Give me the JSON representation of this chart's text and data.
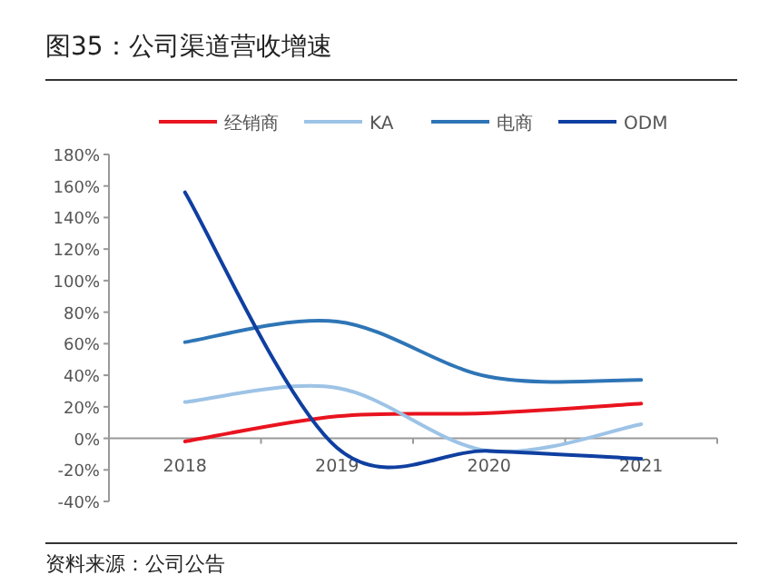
{
  "chart_data": {
    "type": "line",
    "title": "图35：公司渠道营收增速",
    "categories": [
      "2018",
      "2019",
      "2020",
      "2021"
    ],
    "series": [
      {
        "name": "经销商",
        "color": "#e8141f",
        "values": [
          -2,
          14,
          16,
          22
        ]
      },
      {
        "name": "KA",
        "color": "#9dc3e6",
        "values": [
          23,
          32,
          -8,
          9
        ]
      },
      {
        "name": "电商",
        "color": "#2e75b6",
        "values": [
          61,
          74,
          39,
          37
        ]
      },
      {
        "name": "ODM",
        "color": "#0f3fa0",
        "values": [
          156,
          -6,
          -8,
          -13
        ]
      }
    ],
    "ylim": [
      -40,
      180
    ],
    "yticks": [
      {
        "value": -40,
        "label": "-40%"
      },
      {
        "value": -20,
        "label": "-20%"
      },
      {
        "value": 0,
        "label": "0%"
      },
      {
        "value": 20,
        "label": "20%"
      },
      {
        "value": 40,
        "label": "40%"
      },
      {
        "value": 60,
        "label": "60%"
      },
      {
        "value": 80,
        "label": "80%"
      },
      {
        "value": 100,
        "label": "100%"
      },
      {
        "value": 120,
        "label": "120%"
      },
      {
        "value": 140,
        "label": "140%"
      },
      {
        "value": 160,
        "label": "160%"
      },
      {
        "value": 180,
        "label": "180%"
      }
    ],
    "legend": "top",
    "annotations": [
      "资料来源：公司公告"
    ]
  }
}
